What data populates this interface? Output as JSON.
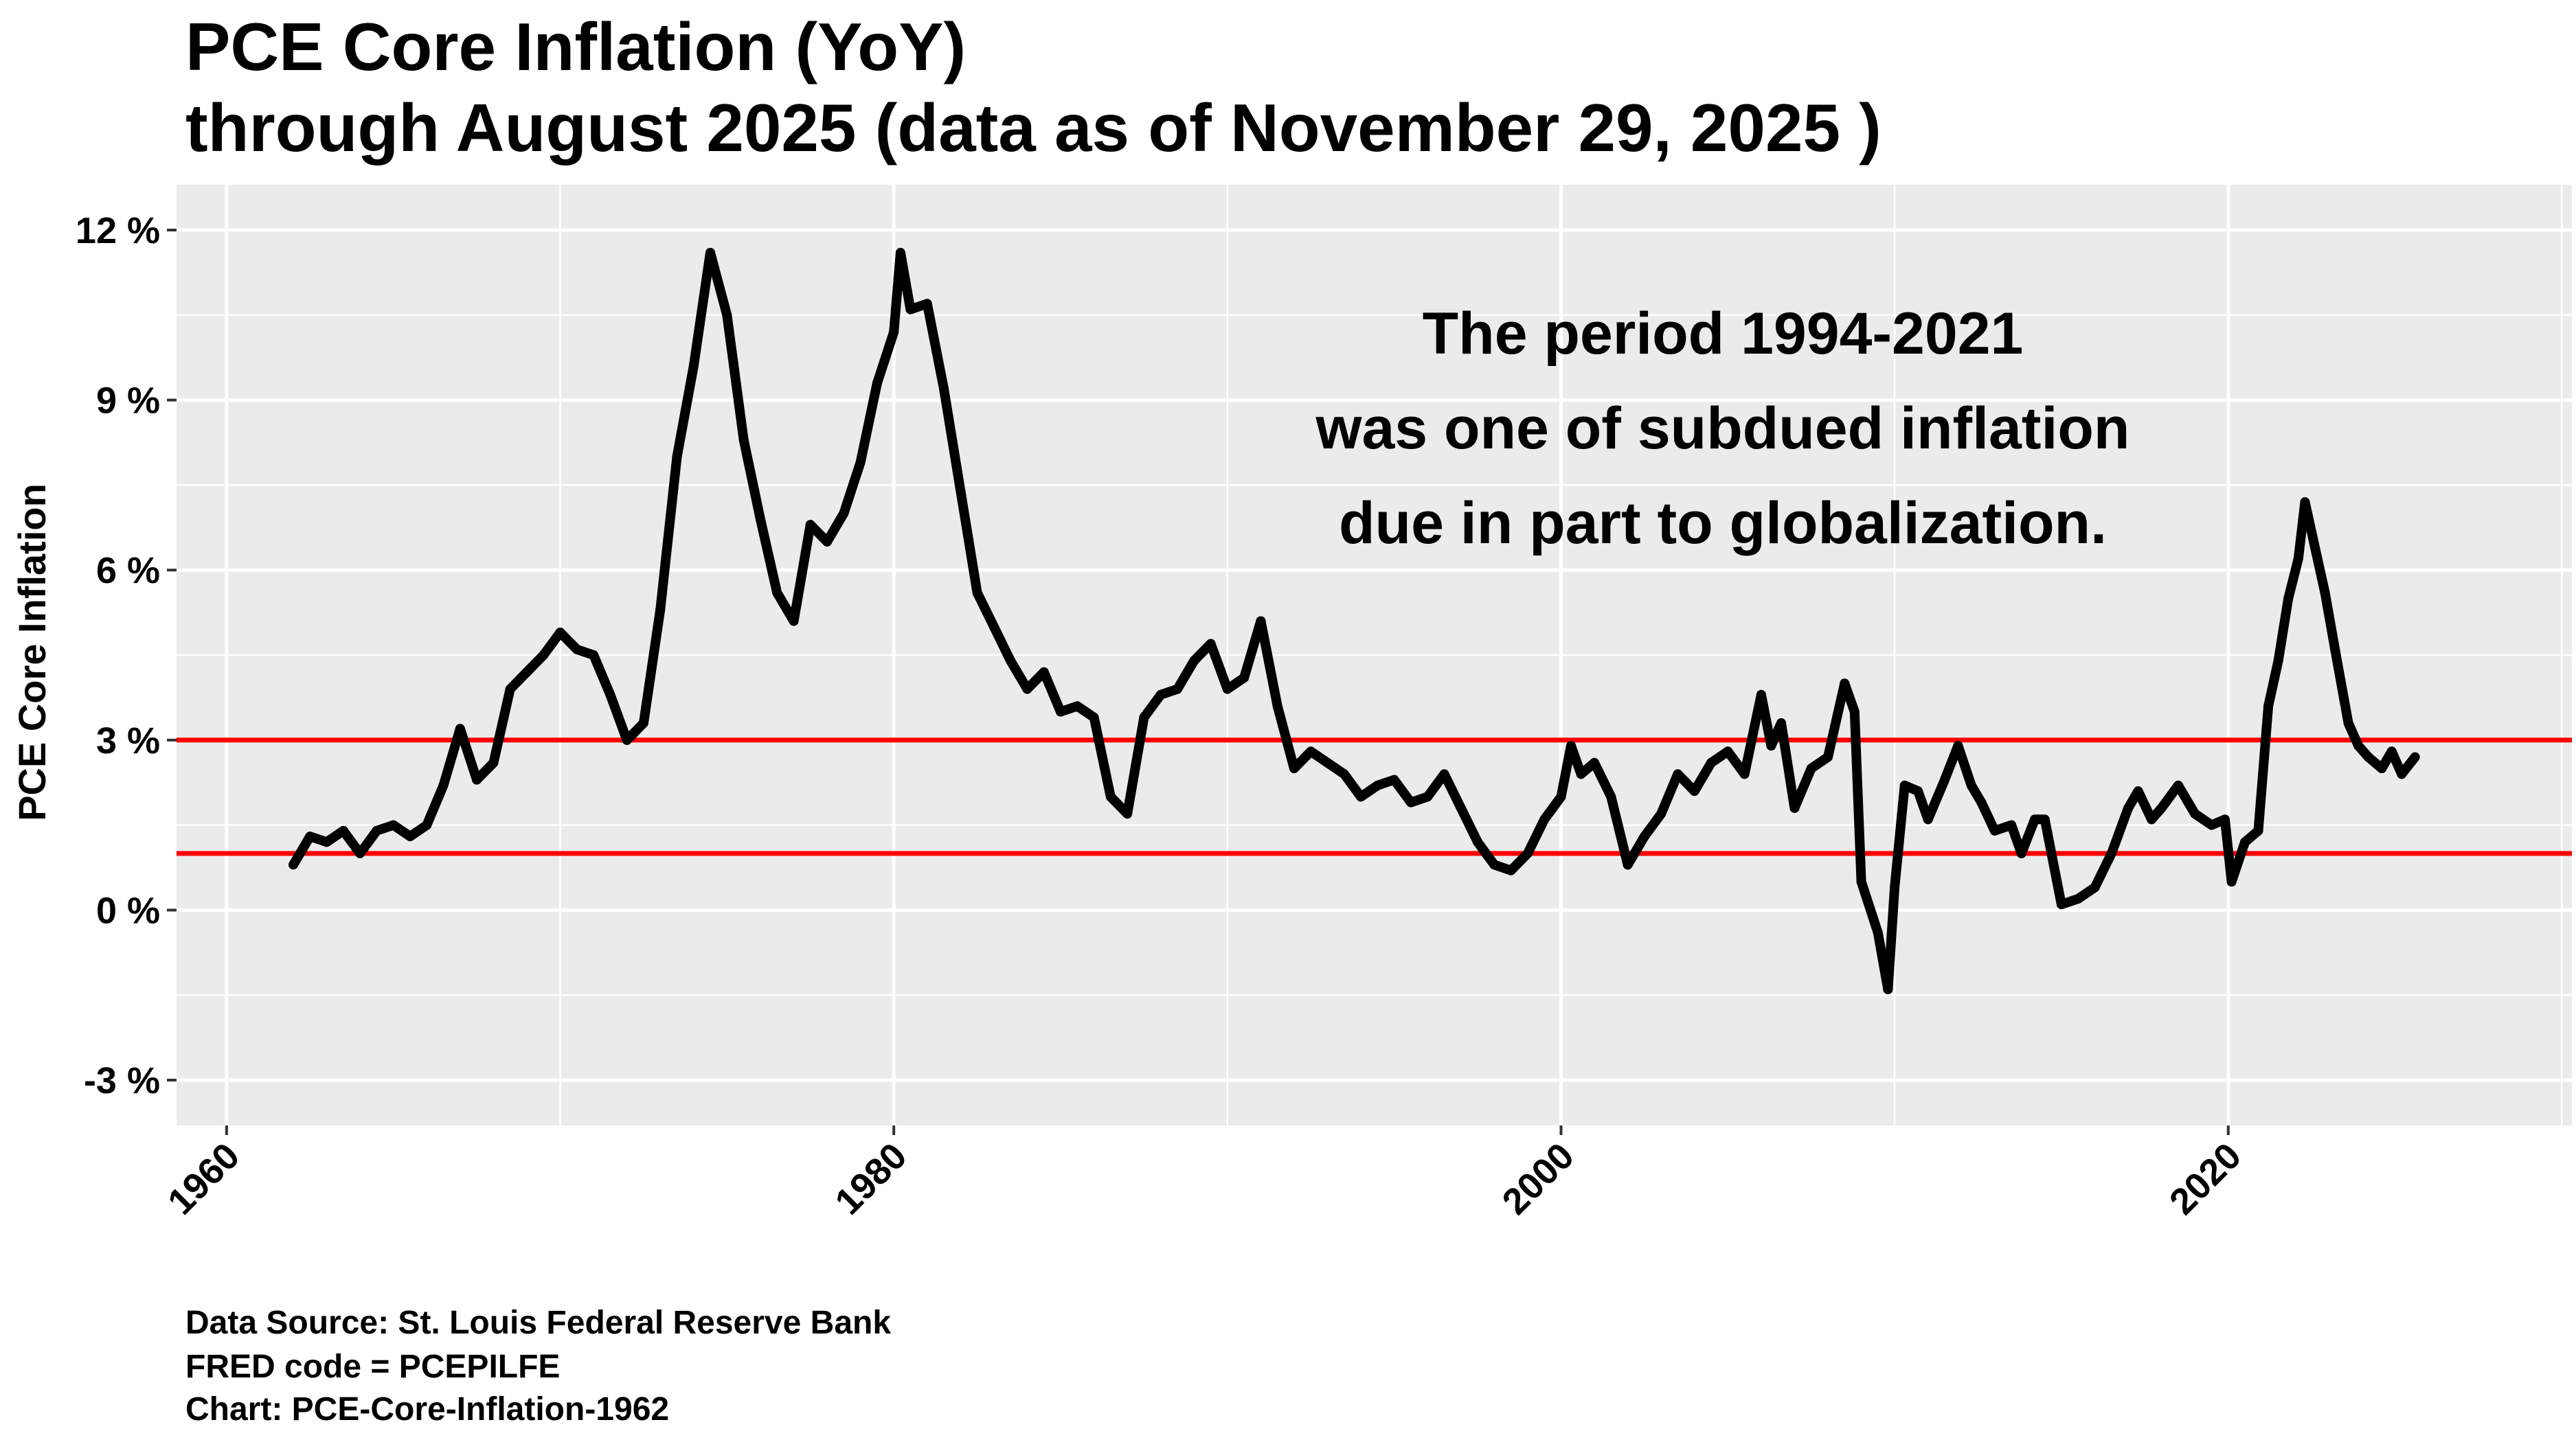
{
  "chart_data": {
    "type": "line",
    "title": "PCE Core Inflation (YoY)",
    "subtitle": "through August 2025 (data as of November 29, 2025 )",
    "xlabel": "",
    "ylabel": "PCE Core Inflation",
    "xlim": [
      1958.5,
      2030.3
    ],
    "ylim": [
      -3.8,
      12.8
    ],
    "x_ticks": [
      1960,
      1980,
      2000,
      2020
    ],
    "x_tick_labels": [
      "1960",
      "1980",
      "2000",
      "2020"
    ],
    "y_ticks": [
      -3,
      0,
      3,
      6,
      9,
      12
    ],
    "y_tick_labels": [
      "-3 %",
      "0 %",
      "3 %",
      "6 %",
      "9 %",
      "12 %"
    ],
    "grid": true,
    "background": "#EBEBEB",
    "series": [
      {
        "color": "#000000",
        "points": [
          [
            1962.0,
            0.8
          ],
          [
            1962.5,
            1.3
          ],
          [
            1963.0,
            1.2
          ],
          [
            1963.5,
            1.4
          ],
          [
            1964.0,
            1.0
          ],
          [
            1964.5,
            1.4
          ],
          [
            1965.0,
            1.5
          ],
          [
            1965.5,
            1.3
          ],
          [
            1966.0,
            1.5
          ],
          [
            1966.5,
            2.2
          ],
          [
            1967.0,
            3.2
          ],
          [
            1967.5,
            2.3
          ],
          [
            1968.0,
            2.6
          ],
          [
            1968.5,
            3.9
          ],
          [
            1969.0,
            4.2
          ],
          [
            1969.5,
            4.5
          ],
          [
            1970.0,
            4.9
          ],
          [
            1970.5,
            4.6
          ],
          [
            1971.0,
            4.5
          ],
          [
            1971.5,
            3.8
          ],
          [
            1972.0,
            3.0
          ],
          [
            1972.5,
            3.3
          ],
          [
            1973.0,
            5.3
          ],
          [
            1973.5,
            8.0
          ],
          [
            1974.0,
            9.6
          ],
          [
            1974.5,
            11.6
          ],
          [
            1975.0,
            10.5
          ],
          [
            1975.5,
            8.3
          ],
          [
            1976.0,
            6.9
          ],
          [
            1976.5,
            5.6
          ],
          [
            1977.0,
            5.1
          ],
          [
            1977.5,
            6.8
          ],
          [
            1978.0,
            6.5
          ],
          [
            1978.5,
            7.0
          ],
          [
            1979.0,
            7.9
          ],
          [
            1979.5,
            9.3
          ],
          [
            1980.0,
            10.2
          ],
          [
            1980.2,
            11.6
          ],
          [
            1980.5,
            10.6
          ],
          [
            1981.0,
            10.7
          ],
          [
            1981.5,
            9.2
          ],
          [
            1982.0,
            7.4
          ],
          [
            1982.5,
            5.6
          ],
          [
            1983.0,
            5.0
          ],
          [
            1983.5,
            4.4
          ],
          [
            1984.0,
            3.9
          ],
          [
            1984.5,
            4.2
          ],
          [
            1985.0,
            3.5
          ],
          [
            1985.5,
            3.6
          ],
          [
            1986.0,
            3.4
          ],
          [
            1986.5,
            2.0
          ],
          [
            1987.0,
            1.7
          ],
          [
            1987.5,
            3.4
          ],
          [
            1988.0,
            3.8
          ],
          [
            1988.5,
            3.9
          ],
          [
            1989.0,
            4.4
          ],
          [
            1989.5,
            4.7
          ],
          [
            1990.0,
            3.9
          ],
          [
            1990.5,
            4.1
          ],
          [
            1991.0,
            5.1
          ],
          [
            1991.5,
            3.6
          ],
          [
            1992.0,
            2.5
          ],
          [
            1992.5,
            2.8
          ],
          [
            1993.0,
            2.6
          ],
          [
            1993.5,
            2.4
          ],
          [
            1994.0,
            2.0
          ],
          [
            1994.5,
            2.2
          ],
          [
            1995.0,
            2.3
          ],
          [
            1995.5,
            1.9
          ],
          [
            1996.0,
            2.0
          ],
          [
            1996.5,
            2.4
          ],
          [
            1997.0,
            1.8
          ],
          [
            1997.5,
            1.2
          ],
          [
            1998.0,
            0.8
          ],
          [
            1998.5,
            0.7
          ],
          [
            1999.0,
            1.0
          ],
          [
            1999.5,
            1.6
          ],
          [
            2000.0,
            2.0
          ],
          [
            2000.3,
            2.9
          ],
          [
            2000.6,
            2.4
          ],
          [
            2001.0,
            2.6
          ],
          [
            2001.5,
            2.0
          ],
          [
            2002.0,
            0.8
          ],
          [
            2002.5,
            1.3
          ],
          [
            2003.0,
            1.7
          ],
          [
            2003.5,
            2.4
          ],
          [
            2004.0,
            2.1
          ],
          [
            2004.5,
            2.6
          ],
          [
            2005.0,
            2.8
          ],
          [
            2005.5,
            2.4
          ],
          [
            2006.0,
            3.8
          ],
          [
            2006.3,
            2.9
          ],
          [
            2006.6,
            3.3
          ],
          [
            2007.0,
            1.8
          ],
          [
            2007.5,
            2.5
          ],
          [
            2008.0,
            2.7
          ],
          [
            2008.5,
            4.0
          ],
          [
            2008.8,
            3.5
          ],
          [
            2009.0,
            0.5
          ],
          [
            2009.5,
            -0.4
          ],
          [
            2009.8,
            -1.4
          ],
          [
            2010.0,
            0.4
          ],
          [
            2010.3,
            2.2
          ],
          [
            2010.7,
            2.1
          ],
          [
            2011.0,
            1.6
          ],
          [
            2011.5,
            2.3
          ],
          [
            2011.9,
            2.9
          ],
          [
            2012.3,
            2.2
          ],
          [
            2012.6,
            1.9
          ],
          [
            2013.0,
            1.4
          ],
          [
            2013.5,
            1.5
          ],
          [
            2013.8,
            1.0
          ],
          [
            2014.2,
            1.6
          ],
          [
            2014.5,
            1.6
          ],
          [
            2015.0,
            0.1
          ],
          [
            2015.5,
            0.2
          ],
          [
            2016.0,
            0.4
          ],
          [
            2016.5,
            1.0
          ],
          [
            2017.0,
            1.8
          ],
          [
            2017.3,
            2.1
          ],
          [
            2017.7,
            1.6
          ],
          [
            2018.0,
            1.8
          ],
          [
            2018.5,
            2.2
          ],
          [
            2019.0,
            1.7
          ],
          [
            2019.5,
            1.5
          ],
          [
            2019.9,
            1.6
          ],
          [
            2020.1,
            0.5
          ],
          [
            2020.5,
            1.2
          ],
          [
            2020.9,
            1.4
          ],
          [
            2021.2,
            3.6
          ],
          [
            2021.5,
            4.4
          ],
          [
            2021.8,
            5.5
          ],
          [
            2022.1,
            6.2
          ],
          [
            2022.3,
            7.2
          ],
          [
            2022.6,
            6.4
          ],
          [
            2022.9,
            5.6
          ],
          [
            2023.2,
            4.6
          ],
          [
            2023.6,
            3.3
          ],
          [
            2023.9,
            2.9
          ],
          [
            2024.2,
            2.7
          ],
          [
            2024.6,
            2.5
          ],
          [
            2024.9,
            2.8
          ],
          [
            2025.2,
            2.4
          ],
          [
            2025.6,
            2.7
          ]
        ]
      }
    ],
    "reference_lines": [
      {
        "y": 3,
        "color": "#FF0000"
      },
      {
        "y": 1,
        "color": "#FF0000"
      }
    ],
    "annotation": {
      "lines": [
        "The period 1994-2021",
        "was one of subdued inflation",
        "due in part to globalization."
      ]
    },
    "caption": [
      "Data Source:  St. Louis Federal Reserve Bank",
      "FRED code = PCEPILFE",
      "Chart: PCE-Core-Inflation-1962"
    ]
  }
}
